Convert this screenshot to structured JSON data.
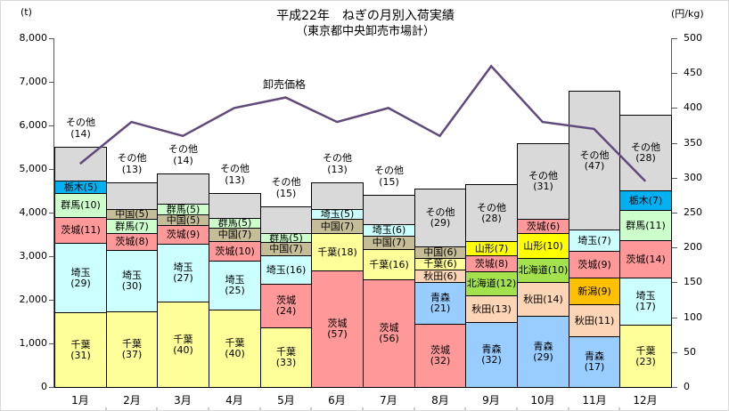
{
  "title": {
    "line1": "平成22年　ねぎの月別入荷実績",
    "line2": "（東京都中央卸売市場計）"
  },
  "chart_data": {
    "type": "bar",
    "subtype": "stacked-bar-with-line",
    "title": "平成22年　ねぎの月別入荷実績（東京都中央卸売市場計）",
    "categories": [
      "1月",
      "2月",
      "3月",
      "4月",
      "5月",
      "6月",
      "7月",
      "8月",
      "9月",
      "10月",
      "11月",
      "12月"
    ],
    "left_axis": {
      "unit": "(t)",
      "min": 0,
      "max": 8000,
      "step": 1000
    },
    "right_axis": {
      "unit": "(円/kg)",
      "min": 0,
      "max": 500,
      "step": 50
    },
    "totals_t": [
      5500,
      4700,
      4900,
      4450,
      4150,
      4700,
      4400,
      4550,
      4650,
      5600,
      6800,
      6250
    ],
    "stacks": [
      [
        {
          "name": "千葉",
          "pct": 31
        },
        {
          "name": "埼玉",
          "pct": 29
        },
        {
          "name": "茨城",
          "pct": 11
        },
        {
          "name": "群馬",
          "pct": 10
        },
        {
          "name": "栃木",
          "pct": 5
        },
        {
          "name": "その他",
          "pct": 14
        }
      ],
      [
        {
          "name": "千葉",
          "pct": 37
        },
        {
          "name": "埼玉",
          "pct": 30
        },
        {
          "name": "茨城",
          "pct": 8
        },
        {
          "name": "群馬",
          "pct": 7
        },
        {
          "name": "中国",
          "pct": 5
        },
        {
          "name": "その他",
          "pct": 13
        }
      ],
      [
        {
          "name": "千葉",
          "pct": 40
        },
        {
          "name": "埼玉",
          "pct": 27
        },
        {
          "name": "茨城",
          "pct": 9
        },
        {
          "name": "中国",
          "pct": 5
        },
        {
          "name": "群馬",
          "pct": 5
        },
        {
          "name": "その他",
          "pct": 14
        }
      ],
      [
        {
          "name": "千葉",
          "pct": 40
        },
        {
          "name": "埼玉",
          "pct": 25
        },
        {
          "name": "茨城",
          "pct": 10
        },
        {
          "name": "中国",
          "pct": 7
        },
        {
          "name": "群馬",
          "pct": 5
        },
        {
          "name": "その他",
          "pct": 13
        }
      ],
      [
        {
          "name": "千葉",
          "pct": 33
        },
        {
          "name": "茨城",
          "pct": 24
        },
        {
          "name": "埼玉",
          "pct": 16
        },
        {
          "name": "中国",
          "pct": 7
        },
        {
          "name": "群馬",
          "pct": 5
        },
        {
          "name": "その他",
          "pct": 15
        }
      ],
      [
        {
          "name": "茨城",
          "pct": 57
        },
        {
          "name": "千葉",
          "pct": 18
        },
        {
          "name": "中国",
          "pct": 7
        },
        {
          "name": "埼玉",
          "pct": 5
        },
        {
          "name": "その他",
          "pct": 13
        }
      ],
      [
        {
          "name": "茨城",
          "pct": 56
        },
        {
          "name": "千葉",
          "pct": 16
        },
        {
          "name": "中国",
          "pct": 7
        },
        {
          "name": "埼玉",
          "pct": 6
        },
        {
          "name": "その他",
          "pct": 15
        }
      ],
      [
        {
          "name": "茨城",
          "pct": 32
        },
        {
          "name": "青森",
          "pct": 21
        },
        {
          "name": "秋田",
          "pct": 6
        },
        {
          "name": "千葉",
          "pct": 6
        },
        {
          "name": "中国",
          "pct": 6
        },
        {
          "name": "その他",
          "pct": 29
        }
      ],
      [
        {
          "name": "青森",
          "pct": 32
        },
        {
          "name": "秋田",
          "pct": 13
        },
        {
          "name": "北海道",
          "pct": 12
        },
        {
          "name": "茨城",
          "pct": 8
        },
        {
          "name": "山形",
          "pct": 7
        },
        {
          "name": "その他",
          "pct": 28
        }
      ],
      [
        {
          "name": "青森",
          "pct": 29
        },
        {
          "name": "秋田",
          "pct": 14
        },
        {
          "name": "北海道",
          "pct": 10
        },
        {
          "name": "山形",
          "pct": 10
        },
        {
          "name": "茨城",
          "pct": 6
        },
        {
          "name": "その他",
          "pct": 31
        }
      ],
      [
        {
          "name": "青森",
          "pct": 17
        },
        {
          "name": "秋田",
          "pct": 11
        },
        {
          "name": "新潟",
          "pct": 9
        },
        {
          "name": "茨城",
          "pct": 9
        },
        {
          "name": "埼玉",
          "pct": 7
        },
        {
          "name": "その他",
          "pct": 47
        }
      ],
      [
        {
          "name": "千葉",
          "pct": 23
        },
        {
          "name": "埼玉",
          "pct": 17
        },
        {
          "name": "茨城",
          "pct": 14
        },
        {
          "name": "群馬",
          "pct": 11
        },
        {
          "name": "栃木",
          "pct": 7
        },
        {
          "name": "その他",
          "pct": 28
        }
      ]
    ],
    "line_series": {
      "name": "卸売価格",
      "unit": "円/kg",
      "values": [
        320,
        380,
        360,
        400,
        415,
        380,
        400,
        360,
        460,
        380,
        370,
        295
      ]
    },
    "colors": {
      "千葉": "#FFFF99",
      "埼玉": "#CCFFFF",
      "茨城": "#FF9999",
      "群馬": "#CCFFCC",
      "栃木": "#00B0F0",
      "中国": "#C4BD97",
      "青森": "#99CCFF",
      "秋田": "#FBD5B5",
      "北海道": "#A4E24D",
      "山形": "#FFFF00",
      "新潟": "#FFC000",
      "その他": "#D9D9D9"
    },
    "line_color": "#604A7B"
  }
}
